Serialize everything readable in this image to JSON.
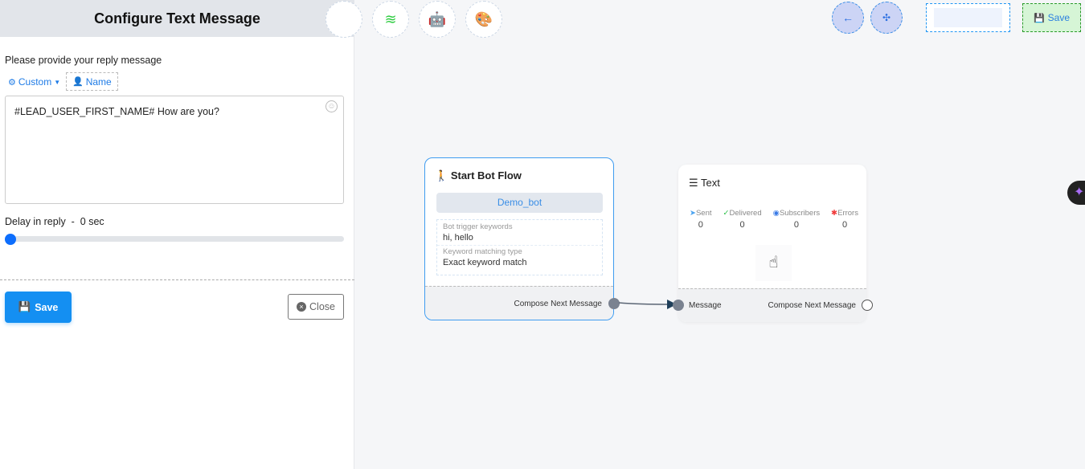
{
  "panel": {
    "title": "Configure Text Message",
    "prompt": "Please provide your reply message",
    "custom": "Custom",
    "name": "Name",
    "message": "#LEAD_USER_FIRST_NAME# How are you?",
    "delay_label": "Delay in reply  -  0 sec",
    "delay_value": 0,
    "save": "Save",
    "close": "Close"
  },
  "toolbar": {
    "save": "Save",
    "icons": [
      "stack-icon",
      "robot-icon",
      "palette-icon"
    ]
  },
  "start_node": {
    "title": "Start Bot Flow",
    "bot": "Demo_bot",
    "kw_label": "Bot trigger keywords",
    "kw_value": "hi, hello",
    "match_label": "Keyword matching type",
    "match_value": "Exact keyword match",
    "out": "Compose Next Message"
  },
  "text_node": {
    "title": "Text",
    "stats": [
      {
        "label": "Sent",
        "value": "0"
      },
      {
        "label": "Delivered",
        "value": "0"
      },
      {
        "label": "Subscribers",
        "value": "0"
      },
      {
        "label": "Errors",
        "value": "0"
      }
    ],
    "in": "Message",
    "out": "Compose Next Message"
  }
}
